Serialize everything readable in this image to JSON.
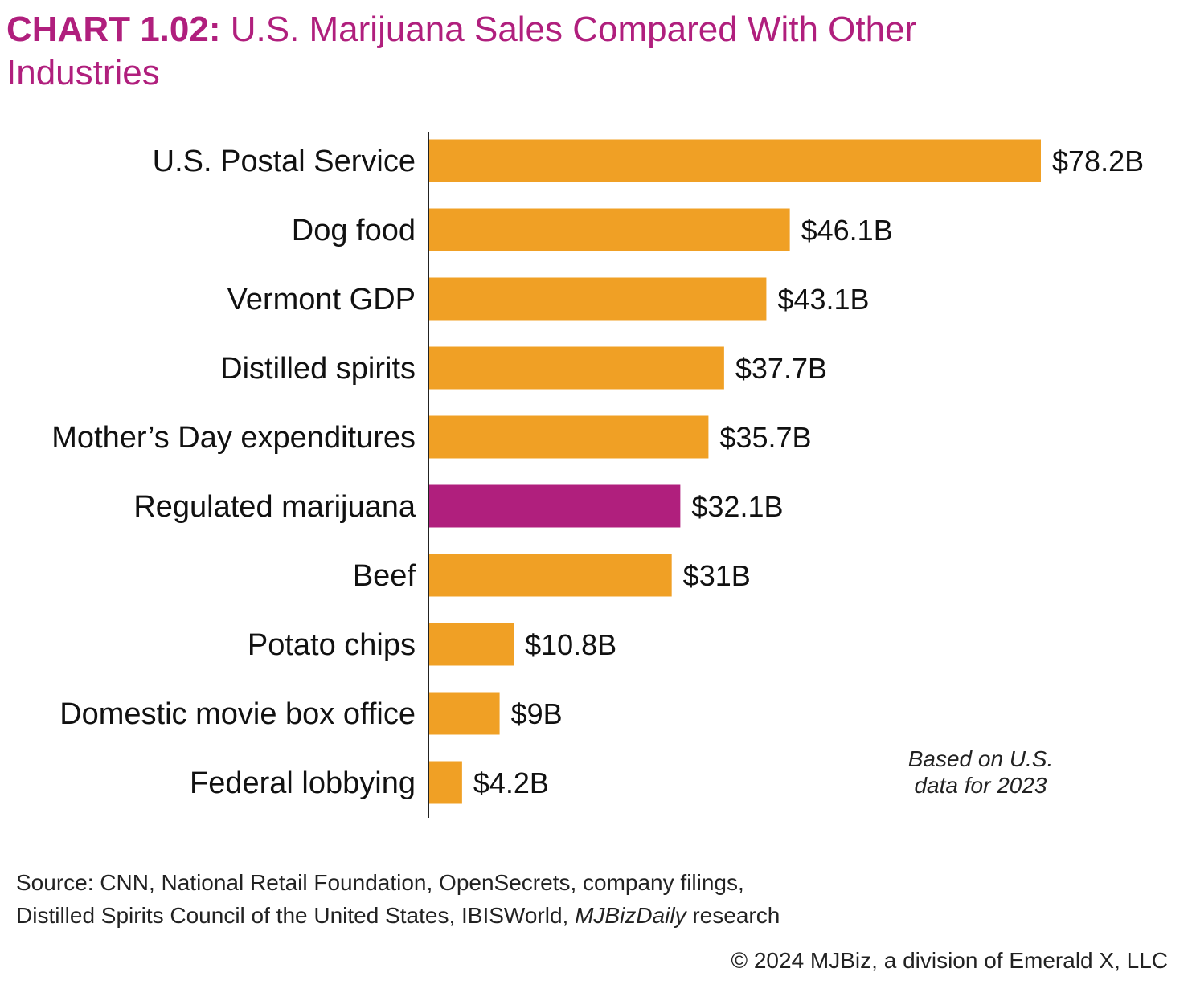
{
  "header": {
    "title_prefix": "CHART 1.02:",
    "title_main": "U.S. Marijuana Sales Compared With Other Industries"
  },
  "chart_data": {
    "type": "bar",
    "orientation": "horizontal",
    "unit": "billion USD",
    "title": "CHART 1.02: U.S. Marijuana Sales Compared With Other Industries",
    "xlabel": "",
    "ylabel": "",
    "grid": false,
    "legend": "none",
    "categories": [
      "U.S. Postal Service",
      "Dog food",
      "Vermont GDP",
      "Distilled spirits",
      "Mother’s Day expenditures",
      "Regulated marijuana",
      "Beef",
      "Potato chips",
      "Domestic movie box office",
      "Federal lobbying"
    ],
    "values": [
      78.2,
      46.1,
      43.1,
      37.7,
      35.7,
      32.1,
      31,
      10.8,
      9,
      4.2
    ],
    "value_labels": [
      "$78.2B",
      "$46.1B",
      "$43.1B",
      "$37.7B",
      "$35.7B",
      "$32.1B",
      "$31B",
      "$10.8B",
      "$9B",
      "$4.2B"
    ],
    "highlight_index": 5,
    "colors": {
      "default": "#f0a025",
      "highlight": "#b01f7d",
      "axis": "#222222"
    }
  },
  "note": {
    "line1": "Based on U.S.",
    "line2": "data for 2023"
  },
  "source": {
    "line1": "Source: CNN, National Retail Foundation, OpenSecrets, company filings,",
    "line2_prefix": "Distilled Spirits Council of the United States, IBISWorld, ",
    "line2_italic": "MJBizDaily",
    "line2_suffix": " research"
  },
  "copyright": "© 2024 MJBiz, a division of Emerald X, LLC"
}
